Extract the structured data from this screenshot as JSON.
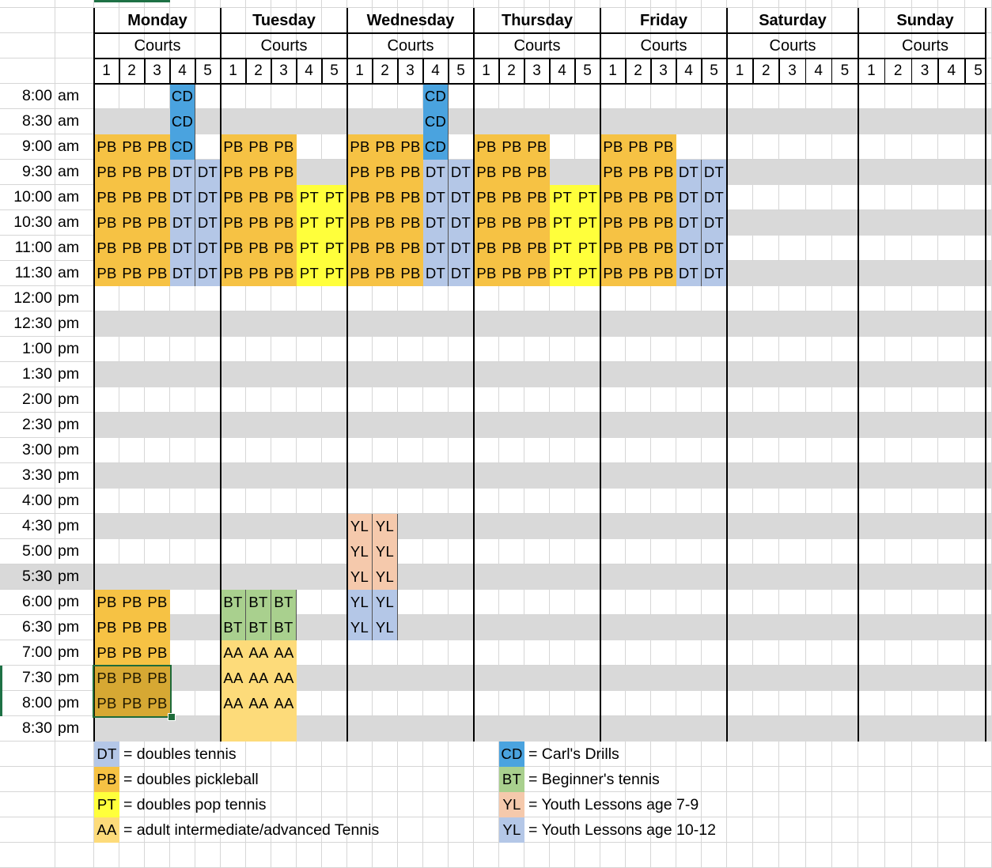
{
  "days": [
    "Monday",
    "Tuesday",
    "Wednesday",
    "Thursday",
    "Friday",
    "Saturday",
    "Sunday"
  ],
  "courts_label": "Courts",
  "court_numbers": [
    "1",
    "2",
    "3",
    "4",
    "5"
  ],
  "times": [
    [
      "8:00",
      "am"
    ],
    [
      "8:30",
      "am"
    ],
    [
      "9:00",
      "am"
    ],
    [
      "9:30",
      "am"
    ],
    [
      "10:00",
      "am"
    ],
    [
      "10:30",
      "am"
    ],
    [
      "11:00",
      "am"
    ],
    [
      "11:30",
      "am"
    ],
    [
      "12:00",
      "pm"
    ],
    [
      "12:30",
      "pm"
    ],
    [
      "1:00",
      "pm"
    ],
    [
      "1:30",
      "pm"
    ],
    [
      "2:00",
      "pm"
    ],
    [
      "2:30",
      "pm"
    ],
    [
      "3:00",
      "pm"
    ],
    [
      "3:30",
      "pm"
    ],
    [
      "4:00",
      "pm"
    ],
    [
      "4:30",
      "pm"
    ],
    [
      "5:00",
      "pm"
    ],
    [
      "5:30",
      "pm"
    ],
    [
      "6:00",
      "pm"
    ],
    [
      "6:30",
      "pm"
    ],
    [
      "7:00",
      "pm"
    ],
    [
      "7:30",
      "pm"
    ],
    [
      "8:00",
      "pm"
    ],
    [
      "8:30",
      "pm"
    ]
  ],
  "colors": {
    "CD": "#4aa3df",
    "PB": "#f6c244",
    "DT": "#b4c7e7",
    "PT": "#ffff3b",
    "AA": "#fddb7a",
    "BT": "#a9d08e",
    "YL1": "#f5c9ac",
    "YL2": "#b4c7e7",
    "stripe": "#d9d9d9",
    "grid": "#d6d6d6"
  },
  "schedule": [
    "CD 4 M 0-2",
    "PB 1-3 M 2-7",
    "DT 4-5 M 3-7",
    "PB 1-3 Tu 2-7",
    "PT 4-5 Tu 4-7",
    "CD 4 W 0-2",
    "PB 1-3 W 2-7",
    "DT 4-5 W 3-7",
    "PB 1-3 Th 2-7",
    "PT 4-5 Th 4-7",
    "PB 1-3 F 2-7",
    "DT 4-5 F 3-7",
    "YL1 1-2 W 17-19",
    "YL2 1-2 W 20-21",
    "PB 1-3 M 20-24",
    "BT 1-3 Tu 20-21",
    "AA 1-3 Tu 22-24",
    "AA 1-3 Tu 25 blank"
  ],
  "legend": [
    {
      "code": "DT",
      "color_key": "DT",
      "text": "= doubles tennis"
    },
    {
      "code": "PB",
      "color_key": "PB",
      "text": "= doubles pickleball"
    },
    {
      "code": "PT",
      "color_key": "PT",
      "text": "= doubles pop tennis"
    },
    {
      "code": "AA",
      "color_key": "AA",
      "text": "= adult intermediate/advanced Tennis"
    },
    {
      "code": "CD",
      "color_key": "CD",
      "text": "= Carl's Drills"
    },
    {
      "code": "BT",
      "color_key": "BT",
      "text": "= Beginner's tennis"
    },
    {
      "code": "YL",
      "color_key": "YL1",
      "text": "= Youth Lessons age 7-9"
    },
    {
      "code": "YL",
      "color_key": "YL2",
      "text": "= Youth Lessons age 10-12"
    }
  ]
}
